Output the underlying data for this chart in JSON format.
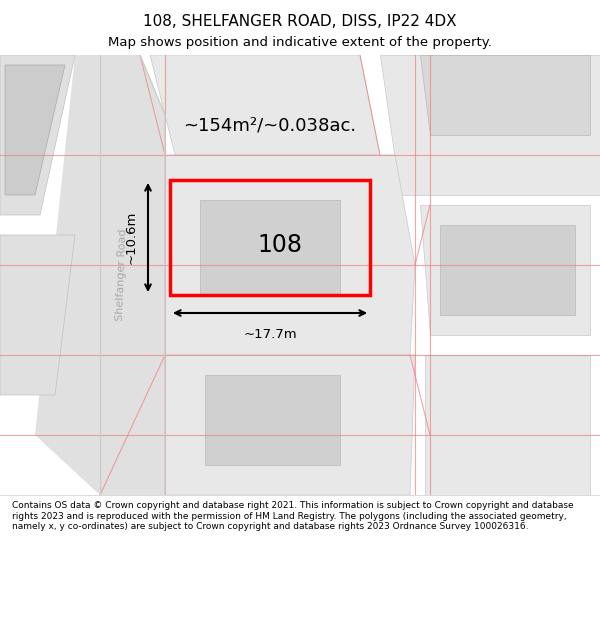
{
  "title": "108, SHELFANGER ROAD, DISS, IP22 4DX",
  "subtitle": "Map shows position and indicative extent of the property.",
  "area_label": "~154m²/~0.038ac.",
  "house_number": "108",
  "dim_width": "~17.7m",
  "dim_height": "~10.6m",
  "road_label": "Shelfanger Road",
  "footer": "Contains OS data © Crown copyright and database right 2021. This information is subject to Crown copyright and database rights 2023 and is reproduced with the permission of HM Land Registry. The polygons (including the associated geometry, namely x, y co-ordinates) are subject to Crown copyright and database rights 2023 Ordnance Survey 100026316.",
  "bg_color": "#f5f5f5",
  "map_bg": "#f0f0f0",
  "plot_color": "#e8e8e8",
  "road_fill": "#e8e8e8",
  "red_plot_color": "red",
  "gray_block_color": "#d0d0d0",
  "light_red": "#ffcccc",
  "road_line_color": "#f08080"
}
